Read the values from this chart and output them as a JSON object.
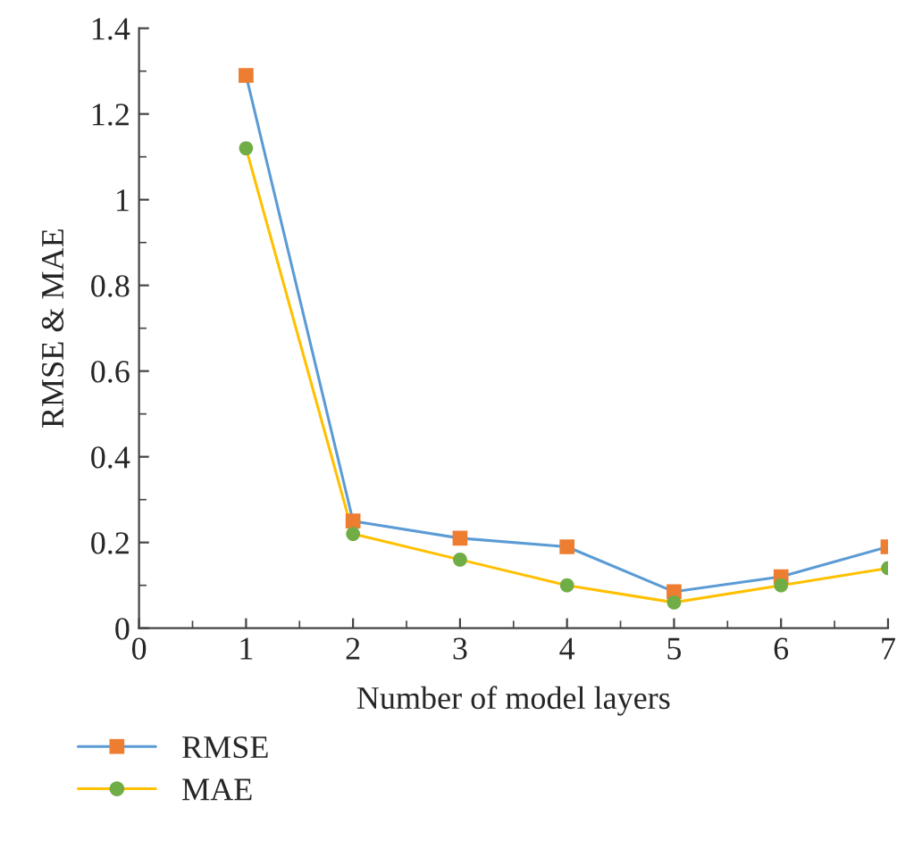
{
  "chart_data": {
    "type": "line",
    "xlabel": "Number of model layers",
    "ylabel": "RMSE & MAE",
    "x": [
      1,
      2,
      3,
      4,
      5,
      6,
      7
    ],
    "series": [
      {
        "name": "RMSE",
        "color": "#5b9bd5",
        "colors": [
          "#ed7d31",
          "#ed7d31",
          "#ed7d31",
          "#ed7d31",
          "#ed7d31",
          "#ed7d31",
          "#ed7d31"
        ],
        "marker": "square",
        "values": [
          1.29,
          0.25,
          0.21,
          0.19,
          0.085,
          0.12,
          0.19
        ]
      },
      {
        "name": "MAE",
        "color": "#ffc000",
        "colors": [
          "#70ad47",
          "#70ad47",
          "#70ad47",
          "#70ad47",
          "#70ad47",
          "#70ad47",
          "#70ad47"
        ],
        "marker": "circle",
        "values": [
          1.12,
          0.22,
          0.16,
          0.1,
          0.06,
          0.1,
          0.14
        ]
      }
    ],
    "xlim": [
      0,
      7
    ],
    "xticks": [
      0,
      1,
      2,
      3,
      4,
      5,
      6,
      7
    ],
    "ylim": [
      0,
      1.4
    ],
    "yticks": [
      {
        "value": 0,
        "label": "0"
      },
      {
        "value": 0.2,
        "label": "0.2"
      },
      {
        "value": 0.4,
        "label": "0.4"
      },
      {
        "value": 0.6,
        "label": "0.6"
      },
      {
        "value": 0.8,
        "label": "0.8"
      },
      {
        "value": 1,
        "label": "1"
      },
      {
        "value": 1.2,
        "label": "1.2"
      },
      {
        "value": 1.4,
        "label": "1.4"
      }
    ],
    "grid": false,
    "legend": "bottom left",
    "line_style": "solid"
  }
}
